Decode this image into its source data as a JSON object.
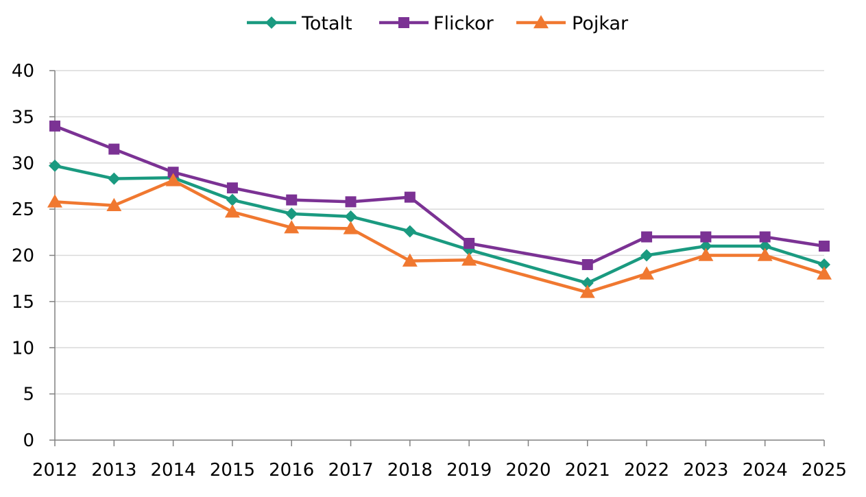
{
  "chart_data": {
    "type": "line",
    "title": "",
    "xlabel": "",
    "ylabel": "",
    "x": [
      2012,
      2013,
      2014,
      2015,
      2016,
      2017,
      2018,
      2019,
      2020,
      2021,
      2022,
      2023,
      2024,
      2025
    ],
    "x_tick_labels": [
      "2012",
      "2013",
      "2014",
      "2015",
      "2016",
      "2017",
      "2018",
      "2019",
      "2020",
      "2021",
      "2022",
      "2023",
      "2024",
      "2025"
    ],
    "ylim": [
      0,
      40
    ],
    "y_ticks": [
      0,
      5,
      10,
      15,
      20,
      25,
      30,
      35,
      40
    ],
    "y_tick_labels": [
      "0",
      "5",
      "10",
      "15",
      "20",
      "25",
      "30",
      "35",
      "40"
    ],
    "grid": true,
    "legend_position": "top-center",
    "series": [
      {
        "name": "Totalt",
        "color": "#1a9a80",
        "marker": "diamond",
        "values": [
          29.7,
          28.3,
          28.4,
          26.0,
          24.5,
          24.2,
          22.6,
          20.6,
          null,
          17.0,
          20.0,
          21.0,
          21.0,
          19.0
        ]
      },
      {
        "name": "Flickor",
        "color": "#7b3294",
        "marker": "square",
        "values": [
          34.0,
          31.5,
          29.0,
          27.3,
          26.0,
          25.8,
          26.3,
          21.3,
          null,
          19.0,
          22.0,
          22.0,
          22.0,
          21.0
        ]
      },
      {
        "name": "Pojkar",
        "color": "#f07830",
        "marker": "triangle",
        "values": [
          25.8,
          25.4,
          28.1,
          24.7,
          23.0,
          22.9,
          19.4,
          19.5,
          null,
          16.0,
          18.0,
          20.0,
          20.0,
          18.0
        ]
      }
    ]
  }
}
